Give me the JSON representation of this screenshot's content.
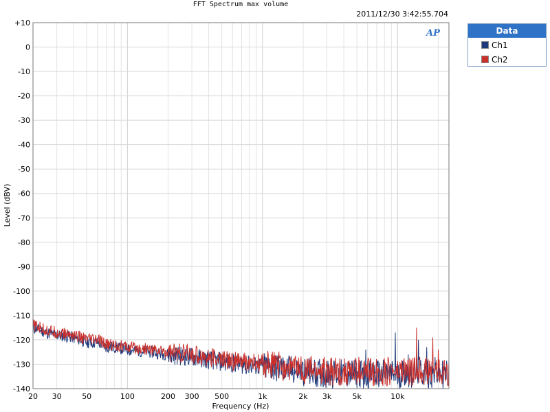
{
  "window": {
    "title": "FFT Spectrum max volume",
    "timestamp": "2011/12/30 3:42:55.704"
  },
  "logo": {
    "text": "AP",
    "color": "#2f73c6"
  },
  "legend": {
    "header": "Data",
    "items": [
      {
        "label": "Ch1",
        "color": "#1f3a7a"
      },
      {
        "label": "Ch2",
        "color": "#c9302c"
      }
    ]
  },
  "chart_data": {
    "type": "line",
    "title": "FFT Spectrum max volume",
    "xlabel": "Frequency (Hz)",
    "ylabel": "Level (dBV)",
    "x_scale": "log",
    "xlim": [
      20,
      24000
    ],
    "ylim": [
      -140,
      10
    ],
    "grid": true,
    "legend_position": "right",
    "x_tick_labels": [
      {
        "v": 20,
        "t": "20"
      },
      {
        "v": 30,
        "t": "30"
      },
      {
        "v": 50,
        "t": "50"
      },
      {
        "v": 100,
        "t": "100"
      },
      {
        "v": 200,
        "t": "200"
      },
      {
        "v": 300,
        "t": "300"
      },
      {
        "v": 500,
        "t": "500"
      },
      {
        "v": 1000,
        "t": "1k"
      },
      {
        "v": 2000,
        "t": "2k"
      },
      {
        "v": 3000,
        "t": "3k"
      },
      {
        "v": 5000,
        "t": "5k"
      },
      {
        "v": 10000,
        "t": "10k"
      }
    ],
    "y_tick_labels": [
      {
        "v": 10,
        "t": "+10"
      },
      {
        "v": 0,
        "t": "0"
      },
      {
        "v": -10,
        "t": "-10"
      },
      {
        "v": -20,
        "t": "-20"
      },
      {
        "v": -30,
        "t": "-30"
      },
      {
        "v": -40,
        "t": "-40"
      },
      {
        "v": -50,
        "t": "-50"
      },
      {
        "v": -60,
        "t": "-60"
      },
      {
        "v": -70,
        "t": "-70"
      },
      {
        "v": -80,
        "t": "-80"
      },
      {
        "v": -90,
        "t": "-90"
      },
      {
        "v": -100,
        "t": "-100"
      },
      {
        "v": -110,
        "t": "-110"
      },
      {
        "v": -120,
        "t": "-120"
      },
      {
        "v": -130,
        "t": "-130"
      },
      {
        "v": -140,
        "t": "-140"
      }
    ],
    "series": [
      {
        "name": "Ch1",
        "color": "#1f3a7a",
        "x": [
          20,
          25,
          30,
          40,
          50,
          60,
          70,
          80,
          100,
          150,
          200,
          300,
          500,
          700,
          1000,
          1500,
          2000,
          3000,
          4000,
          5000,
          6000,
          7000,
          8000,
          9000,
          9500,
          10000,
          11000,
          12000,
          13000,
          13500,
          14000,
          15000,
          16000,
          17000,
          18000,
          19000,
          20000,
          22000,
          24000
        ],
        "y": [
          -115,
          -117,
          -118,
          -119,
          -121,
          -121,
          -123,
          -123,
          -124,
          -125,
          -126,
          -127,
          -129,
          -130,
          -131,
          -132,
          -133,
          -134,
          -134,
          -134,
          -134,
          -134,
          -134,
          -134,
          -134,
          -135,
          -133,
          -134,
          -134,
          -134,
          -133,
          -133,
          -134,
          -134,
          -134,
          -133,
          -134,
          -134,
          -134
        ]
      },
      {
        "name": "Ch2",
        "color": "#c9302c",
        "x": [
          20,
          25,
          30,
          40,
          50,
          60,
          70,
          80,
          100,
          150,
          200,
          300,
          500,
          700,
          1000,
          1500,
          2000,
          3000,
          4000,
          5000,
          6000,
          7000,
          8000,
          9000,
          9500,
          10000,
          11000,
          12000,
          13000,
          13500,
          14000,
          15000,
          16000,
          17000,
          18000,
          19000,
          20000,
          22000,
          24000
        ],
        "y": [
          -114,
          -116,
          -117,
          -118,
          -120,
          -120,
          -122,
          -122,
          -123,
          -124,
          -125,
          -126,
          -128,
          -129,
          -130,
          -131,
          -132,
          -133,
          -133,
          -133,
          -133,
          -133,
          -133,
          -133,
          -133,
          -134,
          -132,
          -133,
          -133,
          -133,
          -132,
          -132,
          -133,
          -133,
          -133,
          -132,
          -133,
          -133,
          -133
        ]
      }
    ],
    "spikes": [
      {
        "series": "Ch1",
        "x": 5800,
        "y": -124
      },
      {
        "series": "Ch1",
        "x": 9600,
        "y": -117
      },
      {
        "series": "Ch1",
        "x": 12000,
        "y": -126
      },
      {
        "series": "Ch1",
        "x": 14300,
        "y": -120
      },
      {
        "series": "Ch1",
        "x": 16500,
        "y": -123
      },
      {
        "series": "Ch1",
        "x": 18000,
        "y": -116
      },
      {
        "series": "Ch2",
        "x": 13800,
        "y": -115
      },
      {
        "series": "Ch2",
        "x": 18200,
        "y": -119
      },
      {
        "series": "Ch2",
        "x": 20000,
        "y": -124
      }
    ]
  }
}
